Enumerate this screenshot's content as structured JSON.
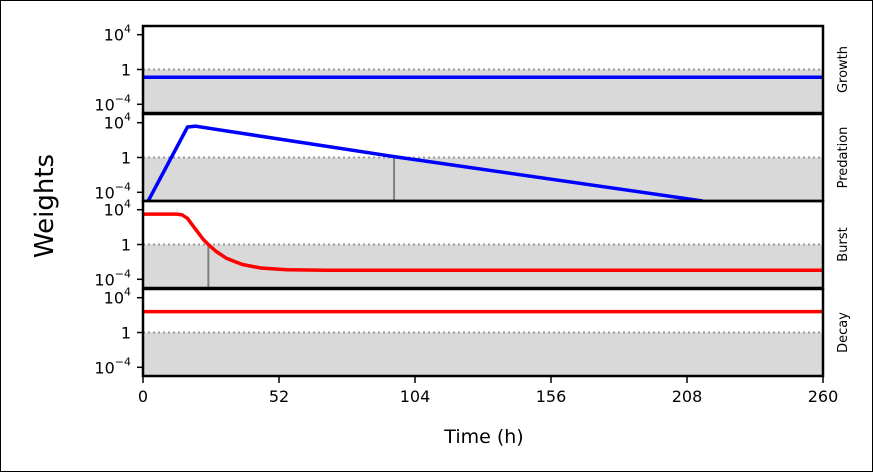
{
  "chart_data": {
    "type": "line",
    "ylabel": "Weights",
    "xlabel": "Time (h)",
    "x_ticks": [
      "0",
      "52",
      "104",
      "156",
      "208",
      "260"
    ],
    "xlim": [
      0,
      260
    ],
    "y_scale": "log",
    "ylim_log10": [
      -5,
      5
    ],
    "y_ticks": [
      {
        "log10": 4,
        "base": "10",
        "exp": "4"
      },
      {
        "log10": 0,
        "base": "1",
        "exp": ""
      },
      {
        "log10": -4,
        "base": "10",
        "exp": "−4"
      }
    ],
    "reference_line": 1,
    "panels": [
      {
        "name": "Growth",
        "color": "#0000ff",
        "points": [
          [
            0,
            -0.9
          ],
          [
            260,
            -0.9
          ]
        ],
        "crossing_x": null
      },
      {
        "name": "Predation",
        "color": "#0000ff",
        "points": [
          [
            2,
            -5
          ],
          [
            17,
            3.5
          ],
          [
            20,
            3.6
          ],
          [
            96,
            0.1
          ],
          [
            214,
            -5
          ]
        ],
        "crossing_x": 96
      },
      {
        "name": "Burst",
        "color": "#ff0000",
        "points": [
          [
            0,
            3.5
          ],
          [
            13,
            3.5
          ],
          [
            15,
            3.4
          ],
          [
            17,
            3.0
          ],
          [
            19,
            2.2
          ],
          [
            21,
            1.4
          ],
          [
            23,
            0.6
          ],
          [
            25,
            0.0
          ],
          [
            28,
            -0.8
          ],
          [
            32,
            -1.6
          ],
          [
            38,
            -2.3
          ],
          [
            45,
            -2.7
          ],
          [
            55,
            -2.9
          ],
          [
            70,
            -2.95
          ],
          [
            260,
            -2.95
          ]
        ],
        "crossing_x": 25
      },
      {
        "name": "Decay",
        "color": "#ff0000",
        "points": [
          [
            0,
            2.4
          ],
          [
            260,
            2.4
          ]
        ],
        "crossing_x": null
      }
    ]
  }
}
